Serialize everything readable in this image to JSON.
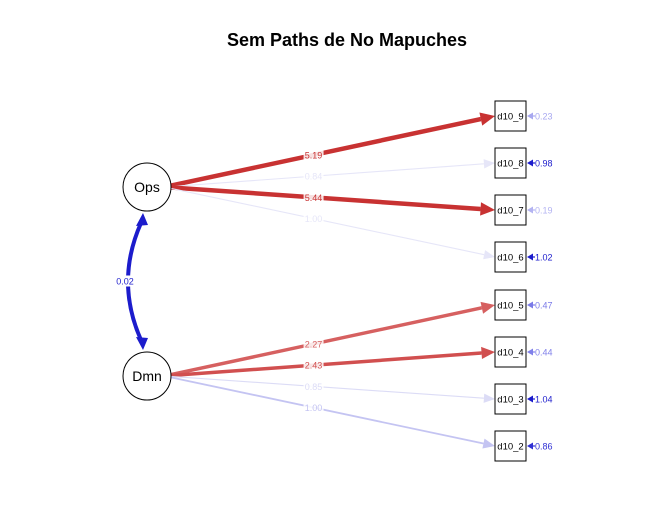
{
  "title": "Sem Paths de No Mapuches",
  "latents": [
    {
      "id": "Ops",
      "label": "Ops"
    },
    {
      "id": "Dmn",
      "label": "Dmn"
    }
  ],
  "indicators": [
    {
      "id": "d10_9",
      "label": "d10_9",
      "residual": "0.23",
      "residual_color": "#a8a8f0"
    },
    {
      "id": "d10_8",
      "label": "d10_8",
      "residual": "0.98",
      "residual_color": "#1c1ccc"
    },
    {
      "id": "d10_7",
      "label": "d10_7",
      "residual": "0.19",
      "residual_color": "#b4b4f2"
    },
    {
      "id": "d10_6",
      "label": "d10_6",
      "residual": "1.02",
      "residual_color": "#1c1ccc"
    },
    {
      "id": "d10_5",
      "label": "d10_5",
      "residual": "0.47",
      "residual_color": "#7a7ae8"
    },
    {
      "id": "d10_4",
      "label": "d10_4",
      "residual": "0.44",
      "residual_color": "#8080ea"
    },
    {
      "id": "d10_3",
      "label": "d10_3",
      "residual": "1.04",
      "residual_color": "#1c1ccc"
    },
    {
      "id": "d10_2",
      "label": "d10_2",
      "residual": "0.86",
      "residual_color": "#3030d4"
    }
  ],
  "loadings": [
    {
      "from": "Ops",
      "to": "d10_9",
      "label": "5.19",
      "color": "#c83232",
      "weight": "strong"
    },
    {
      "from": "Ops",
      "to": "d10_8",
      "label": "0.84",
      "color": "#e6e6f8",
      "weight": "faint"
    },
    {
      "from": "Ops",
      "to": "d10_7",
      "label": "5.44",
      "color": "#c83232",
      "weight": "strong"
    },
    {
      "from": "Ops",
      "to": "d10_6",
      "label": "1.00",
      "color": "#e6e6f8",
      "weight": "faint"
    },
    {
      "from": "Dmn",
      "to": "d10_5",
      "label": "2.27",
      "color": "#d66060",
      "weight": "medium"
    },
    {
      "from": "Dmn",
      "to": "d10_4",
      "label": "2.43",
      "color": "#d14f4f",
      "weight": "medium"
    },
    {
      "from": "Dmn",
      "to": "d10_3",
      "label": "0.85",
      "color": "#dcdcf6",
      "weight": "faint"
    },
    {
      "from": "Dmn",
      "to": "d10_2",
      "label": "1.00",
      "color": "#c4c4f2",
      "weight": "light"
    }
  ],
  "covariance": {
    "from": "Ops",
    "to": "Dmn",
    "label": "0.02",
    "color": "#1c1ccc"
  }
}
